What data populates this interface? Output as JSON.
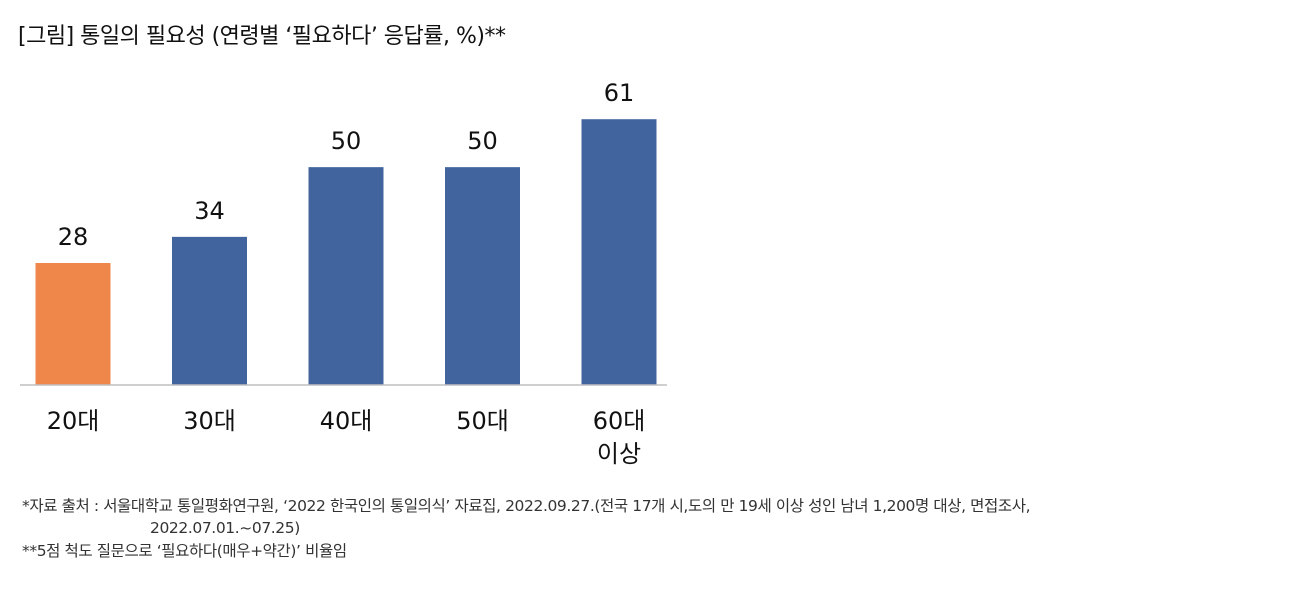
{
  "title": "[그림] 통일의 필요성 (연령별 ‘필요하다’ 응답률, %)**",
  "chart_data": {
    "type": "bar",
    "categories": [
      [
        "20대"
      ],
      [
        "30대"
      ],
      [
        "40대"
      ],
      [
        "50대"
      ],
      [
        "60대",
        "이상"
      ]
    ],
    "values": [
      28,
      34,
      50,
      50,
      61
    ],
    "ylim": [
      0,
      70
    ],
    "colors": {
      "highlight": "#F0874A",
      "default": "#41649E",
      "axis": "#BFBFBF"
    },
    "highlight_index": 0,
    "grid": false,
    "legend": "none"
  },
  "notes": {
    "source_line1": "*자료 출처 : 서울대학교 통일평화연구원, ‘2022 한국인의 통일의식’ 자료집, 2022.09.27.(전국 17개 시,도의 만 19세 이상 성인 남녀 1,200명 대상, 면접조사,",
    "source_line2": "2022.07.01.~07.25)",
    "footnote": "**5점 척도 질문으로 ‘필요하다(매우+약간)’ 비율임"
  }
}
